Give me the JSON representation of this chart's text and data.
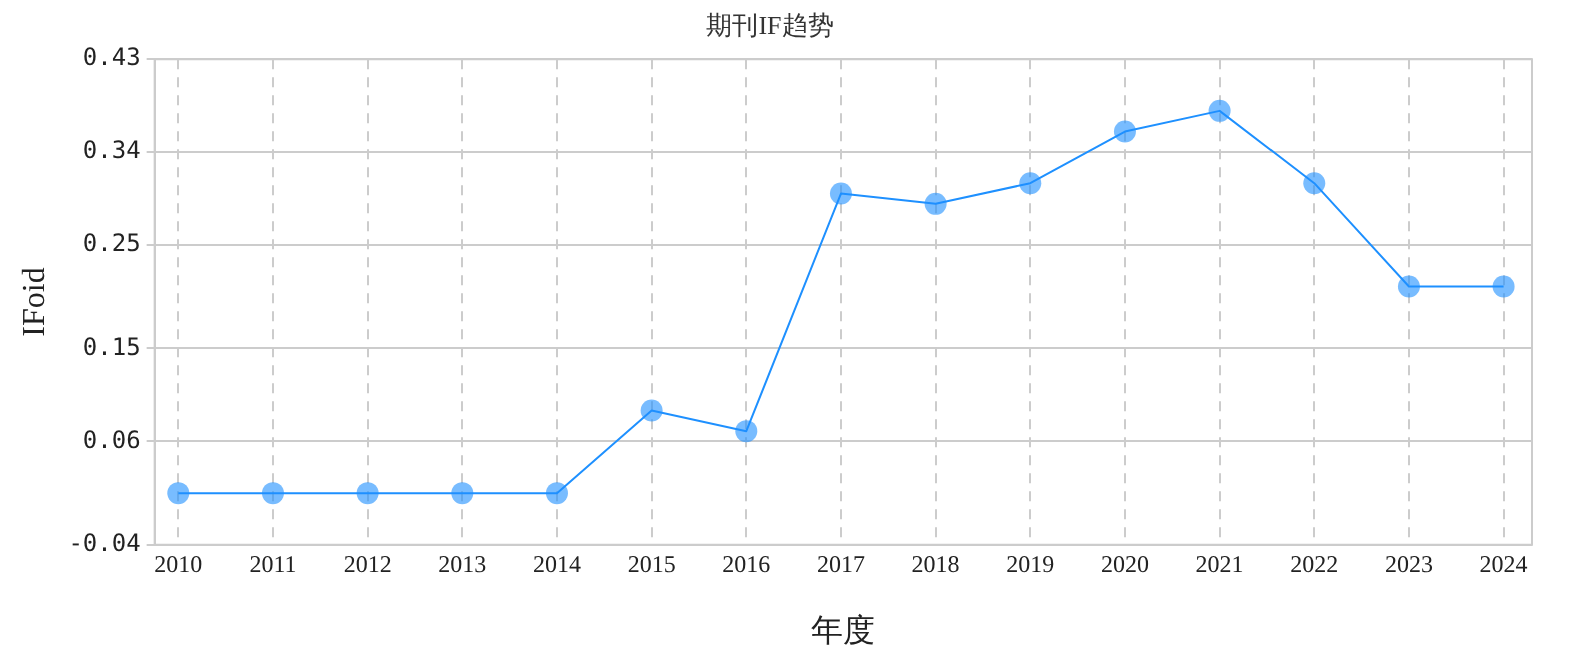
{
  "chart_data": {
    "type": "line",
    "title": "期刊IF趋势",
    "xlabel": "年度",
    "ylabel": "IFoid",
    "x": [
      2010,
      2011,
      2012,
      2013,
      2014,
      2015,
      2016,
      2017,
      2018,
      2019,
      2020,
      2021,
      2022,
      2023,
      2024
    ],
    "series": [
      {
        "color": "#1e90ff",
        "values": [
          0.01,
          0.01,
          0.01,
          0.01,
          0.01,
          0.09,
          0.07,
          0.3,
          0.29,
          0.31,
          0.36,
          0.38,
          0.31,
          0.21,
          0.21
        ]
      }
    ],
    "xlim": [
      2009.75,
      2024.3
    ],
    "xticks": [
      2010,
      2011,
      2012,
      2013,
      2014,
      2015,
      2016,
      2017,
      2018,
      2019,
      2020,
      2021,
      2022,
      2023,
      2024
    ],
    "ylim": [
      -0.04,
      0.43
    ],
    "yticks": [
      -0.04,
      0.06,
      0.15,
      0.25,
      0.34,
      0.43
    ],
    "grid": true,
    "legend": false,
    "marker": "circle",
    "line_style": "solid"
  }
}
